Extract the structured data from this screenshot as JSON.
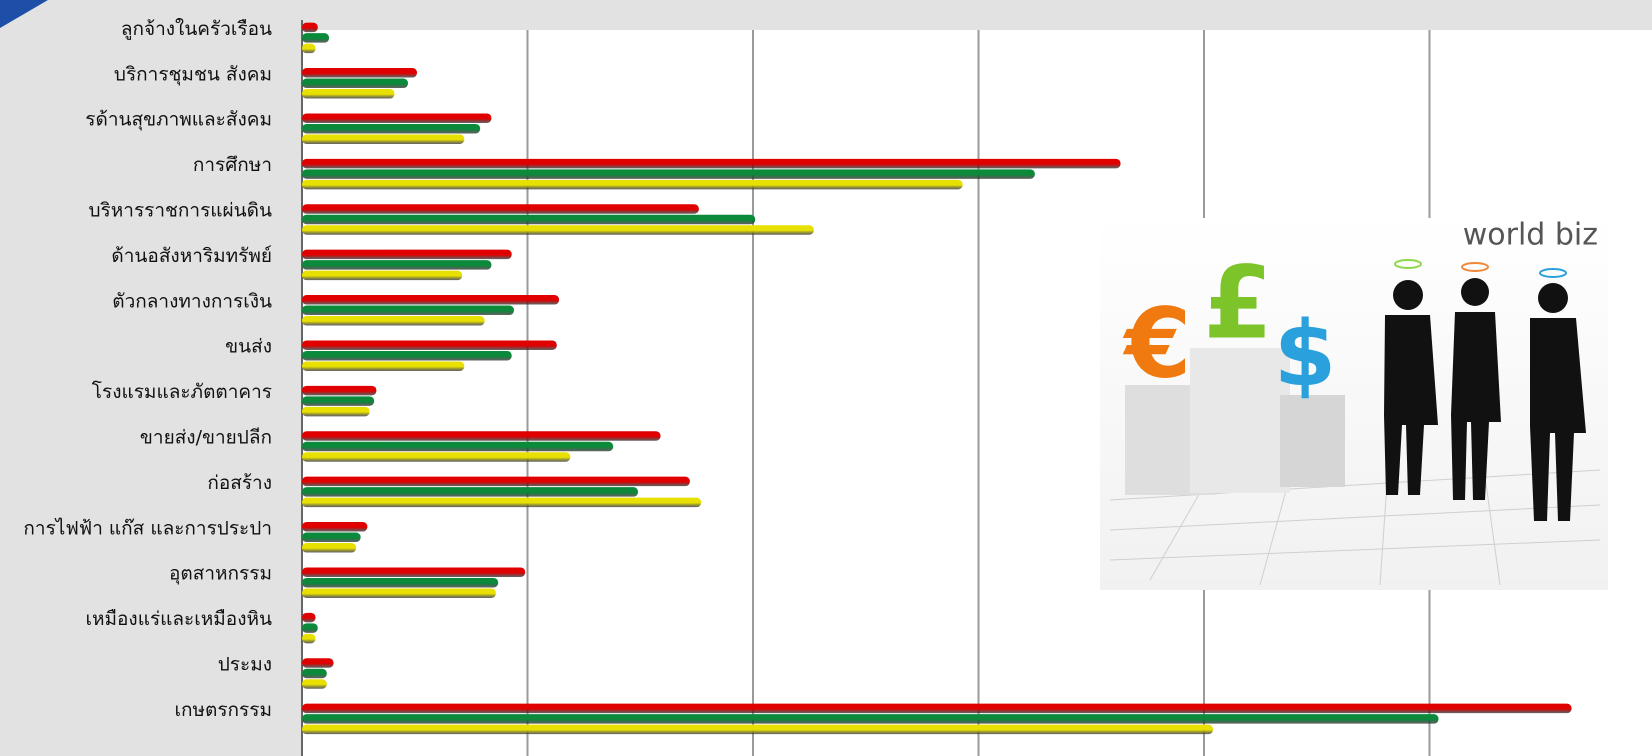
{
  "chart_data": {
    "type": "bar",
    "orientation": "horizontal",
    "categories": [
      "ลูกจ้างในครัวเรือน",
      "บริการชุมชน สังคม",
      "รด้านสุขภาพและสังคม",
      "การศึกษา",
      "บริหารราชการแผ่นดิน",
      "ด้านอสังหาริมทรัพย์",
      "ตัวกลางทางการเงิน",
      "ขนส่ง",
      "โรงแรมและภัตตาคาร",
      "ขายส่ง/ขายปลีก",
      "ก่อสร้าง",
      "การไฟฟ้า แก๊ส และการประปา",
      "อุตสาหกรรม",
      "เหมืองแร่และเหมืองหิน",
      "ประมง",
      "เกษตรกรรม"
    ],
    "series": [
      {
        "color": "#e00000",
        "values": [
          0.07,
          0.51,
          0.84,
          3.63,
          1.76,
          0.93,
          1.14,
          1.13,
          0.33,
          1.59,
          1.72,
          0.29,
          0.99,
          0.06,
          0.14,
          5.63
        ]
      },
      {
        "color": "#0a8a3a",
        "values": [
          0.12,
          0.47,
          0.79,
          3.25,
          2.01,
          0.84,
          0.94,
          0.93,
          0.32,
          1.38,
          1.49,
          0.26,
          0.87,
          0.07,
          0.11,
          5.04
        ]
      },
      {
        "color": "#e8e000",
        "values": [
          0.06,
          0.41,
          0.72,
          2.93,
          2.27,
          0.71,
          0.81,
          0.72,
          0.3,
          1.19,
          1.77,
          0.24,
          0.86,
          0.06,
          0.11,
          4.04
        ]
      }
    ],
    "xlim": [
      0,
      6
    ],
    "xticks": [
      0,
      1,
      2,
      3,
      4,
      5
    ],
    "grid": true,
    "annotation": "world biz",
    "symbols": [
      "€",
      "£",
      "$"
    ]
  }
}
